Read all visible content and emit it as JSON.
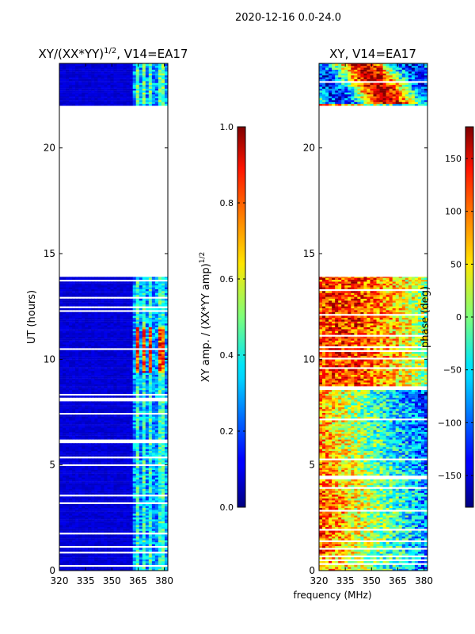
{
  "figure": {
    "suptitle": "2020-12-16 0.0-24.0",
    "xlabel": "frequency (MHz)"
  },
  "chart_data": [
    {
      "type": "heatmap",
      "title_main": "XY/(XX*YY)",
      "title_exp": "1/2",
      "title_suffix": ", V14=EA17",
      "ylabel": "UT (hours)",
      "xlim": [
        320,
        382
      ],
      "ylim": [
        0,
        24
      ],
      "xticks": [
        320,
        335,
        350,
        365,
        380
      ],
      "yticks": [
        0,
        5,
        10,
        15,
        20
      ],
      "data_bands_ut": [
        [
          0,
          13.9
        ],
        [
          22.0,
          24.0
        ]
      ],
      "colorbar": {
        "label_main": "XY amp. / (XX*YY amp)",
        "label_exp": "1/2",
        "range": [
          0.0,
          1.0
        ],
        "ticks": [
          {
            "value": 0.0,
            "label": "0.0"
          },
          {
            "value": 0.2,
            "label": "0.2"
          },
          {
            "value": 0.4,
            "label": "0.4"
          },
          {
            "value": 0.6,
            "label": "0.6"
          },
          {
            "value": 0.8,
            "label": "0.8"
          },
          {
            "value": 1.0,
            "label": "1.0"
          }
        ]
      }
    },
    {
      "type": "heatmap",
      "title_main": "XY, V14=EA17",
      "xlim": [
        320,
        382
      ],
      "ylim": [
        0,
        24
      ],
      "xticks": [
        320,
        335,
        350,
        365,
        380
      ],
      "yticks": [
        0,
        5,
        10,
        15,
        20
      ],
      "data_bands_ut": [
        [
          0,
          13.9
        ],
        [
          22.0,
          24.0
        ]
      ],
      "colorbar": {
        "label_main": "phase (deg)",
        "range": [
          -180,
          180
        ],
        "ticks": [
          {
            "value": -150,
            "label": "−150"
          },
          {
            "value": -100,
            "label": "−100"
          },
          {
            "value": -50,
            "label": "−50"
          },
          {
            "value": 0,
            "label": "0"
          },
          {
            "value": 50,
            "label": "50"
          },
          {
            "value": 100,
            "label": "100"
          },
          {
            "value": 150,
            "label": "150"
          }
        ]
      }
    }
  ]
}
